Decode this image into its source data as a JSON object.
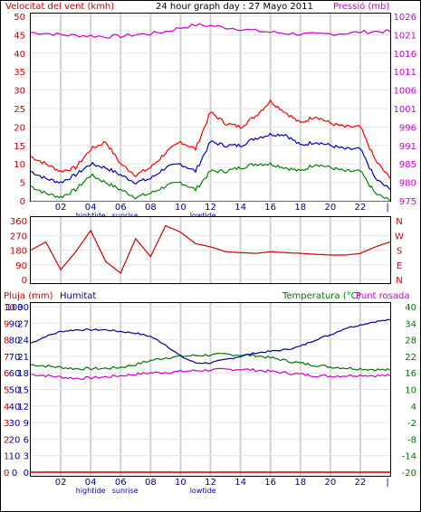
{
  "title": "24 hour graph day : 27 Mayo 2011",
  "colors": {
    "wind": "#cc0000",
    "pressure": "#cc00cc",
    "humidity": "#000099",
    "temperature": "#007700",
    "dewpoint": "#cc00cc",
    "rain": "#cc0000",
    "gust": "#ff0000",
    "avg": "#0000cc",
    "low": "#008800"
  },
  "chart_data": [
    {
      "type": "line",
      "name": "wind-pressure",
      "left_label": "Velocitat del vent (kmh)",
      "right_label": "Pressió (mb)",
      "left_ticks": [
        "50",
        "45",
        "40",
        "35",
        "30",
        "25",
        "20",
        "15",
        "10",
        "5",
        "0"
      ],
      "right_ticks": [
        "1026",
        "1021",
        "1016",
        "1011",
        "1006",
        "1001",
        "996",
        "991",
        "985",
        "980",
        "975"
      ],
      "x_ticks": [
        "02",
        "04",
        "06",
        "08",
        "10",
        "12",
        "14",
        "16",
        "18",
        "20",
        "22"
      ],
      "events": [
        "hightide",
        "sunrise",
        "lowtide"
      ],
      "ylim_left": [
        0,
        50
      ],
      "ylim_right": [
        975,
        1026
      ],
      "grid": true,
      "x_hours": [
        0,
        1,
        2,
        3,
        4,
        5,
        6,
        7,
        8,
        9,
        10,
        11,
        12,
        13,
        14,
        15,
        16,
        17,
        18,
        19,
        20,
        21,
        22,
        23,
        24
      ],
      "pressure": [
        1021.5,
        1021.3,
        1020.9,
        1020.7,
        1020.6,
        1020.4,
        1020.5,
        1020.9,
        1021.2,
        1021.8,
        1022.8,
        1023.6,
        1023.4,
        1022.9,
        1022.5,
        1022.0,
        1021.6,
        1021.3,
        1021.1,
        1021.0,
        1021.1,
        1021.3,
        1021.6,
        1021.8,
        1021.8
      ],
      "wind_gust": [
        12,
        10,
        8,
        9,
        14,
        16,
        10,
        7,
        9,
        13,
        16,
        14,
        24,
        21,
        20,
        23,
        27,
        24,
        21,
        23,
        21,
        20,
        20,
        11,
        6
      ],
      "wind_avg": [
        8,
        6,
        5,
        7,
        10,
        9,
        7,
        5,
        6,
        9,
        10,
        8,
        16,
        15,
        15,
        17,
        18,
        18,
        15,
        16,
        15,
        14,
        14,
        6,
        3
      ],
      "wind_low": [
        4,
        2,
        1,
        3,
        7,
        5,
        3,
        1,
        2,
        4,
        5,
        3,
        8,
        8,
        9,
        10,
        10,
        9,
        8,
        10,
        9,
        8,
        8,
        2,
        0
      ]
    },
    {
      "type": "line",
      "name": "wind-direction",
      "left_ticks": [
        "360",
        "270",
        "180",
        "90",
        "0"
      ],
      "right_letters": [
        "N",
        "W",
        "S",
        "E",
        "N"
      ],
      "ylim": [
        0,
        360
      ],
      "x_hours": [
        0,
        1,
        2,
        3,
        4,
        5,
        6,
        7,
        8,
        9,
        10,
        11,
        12,
        13,
        14,
        15,
        16,
        17,
        18,
        19,
        20,
        21,
        22,
        23,
        24
      ],
      "direction": [
        180,
        230,
        60,
        170,
        300,
        110,
        40,
        250,
        140,
        330,
        290,
        220,
        200,
        170,
        165,
        160,
        170,
        165,
        160,
        155,
        150,
        150,
        160,
        200,
        230
      ]
    },
    {
      "type": "line",
      "name": "rain-humidity-temperature",
      "rain_label": "Pluja (mm)",
      "humidity_label": "Humitat",
      "temp_label": "Temperatura (°C)",
      "dewpoint_label": "Punt rosada",
      "rain_ticks": [
        "10",
        "9",
        "8",
        "7",
        "6",
        "5",
        "4",
        "3",
        "2",
        "1",
        "0"
      ],
      "humidity_ticks": [
        "100",
        "90",
        "80",
        "70",
        "60",
        "50",
        "40",
        "30",
        "20",
        "10",
        "0"
      ],
      "temp_ticks_left": [
        "30",
        "27",
        "24",
        "21",
        "18",
        "15",
        "12",
        "9",
        "6",
        "3",
        "0"
      ],
      "temp_ticks_right": [
        "40",
        "34",
        "28",
        "22",
        "16",
        "10",
        "4",
        "-2",
        "-8",
        "-14",
        "-20"
      ],
      "x_ticks": [
        "02",
        "04",
        "06",
        "08",
        "10",
        "12",
        "14",
        "16",
        "18",
        "20",
        "22"
      ],
      "events": [
        "hightide",
        "sunrise",
        "lowtide"
      ],
      "ylim_humidity": [
        0,
        100
      ],
      "ylim_temp_right": [
        -20,
        40
      ],
      "x_hours": [
        0,
        1,
        2,
        3,
        4,
        5,
        6,
        7,
        8,
        9,
        10,
        11,
        12,
        13,
        14,
        15,
        16,
        17,
        18,
        19,
        20,
        21,
        22,
        23,
        24
      ],
      "humidity": [
        78,
        82,
        85,
        86,
        86,
        86,
        85,
        84,
        82,
        77,
        70,
        66,
        66,
        68,
        70,
        72,
        73,
        74,
        76,
        80,
        83,
        87,
        89,
        91,
        92
      ],
      "temperature": [
        19.0,
        18.5,
        18.0,
        17.5,
        17.5,
        17.6,
        18.0,
        19.0,
        20.5,
        21.5,
        22.0,
        22.3,
        22.5,
        22.7,
        22.5,
        22.3,
        21.5,
        20.5,
        19.5,
        18.8,
        18.2,
        17.8,
        17.5,
        17.2,
        17.0
      ],
      "dewpoint": [
        15.5,
        15.0,
        14.5,
        14.0,
        14.2,
        14.5,
        15.0,
        15.5,
        16.0,
        16.2,
        16.5,
        16.8,
        17.0,
        17.2,
        17.3,
        17.0,
        16.5,
        16.0,
        15.5,
        15.0,
        14.8,
        15.0,
        15.2,
        15.0,
        15.0
      ],
      "rain": [
        0,
        0,
        0,
        0,
        0,
        0,
        0,
        0,
        0,
        0,
        0,
        0,
        0,
        0,
        0,
        0,
        0,
        0,
        0,
        0,
        0,
        0,
        0,
        0,
        0
      ]
    }
  ]
}
